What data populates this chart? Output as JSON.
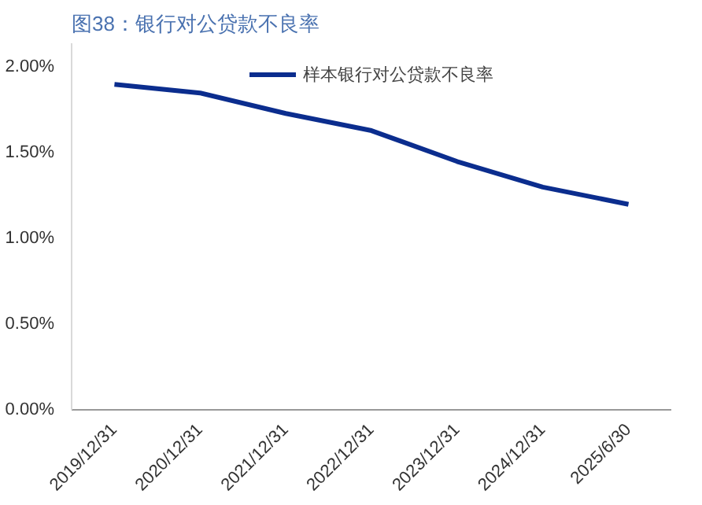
{
  "chart_data": {
    "type": "line",
    "title": "图38：银行对公贷款不良率",
    "categories": [
      "2019/12/31",
      "2020/12/31",
      "2021/12/31",
      "2022/12/31",
      "2023/12/31",
      "2024/12/31",
      "2025/6/30"
    ],
    "series": [
      {
        "name": "样本银行对公贷款不良率",
        "color": "#0b2d8e",
        "values": [
          1.9,
          1.85,
          1.73,
          1.63,
          1.45,
          1.3,
          1.2
        ]
      }
    ],
    "ylim": [
      0,
      2.14
    ],
    "yticks": [
      {
        "value": 0,
        "label": "0.00%"
      },
      {
        "value": 0.5,
        "label": "0.50%"
      },
      {
        "value": 1,
        "label": "1.00%"
      },
      {
        "value": 1.5,
        "label": "1.50%"
      },
      {
        "value": 2,
        "label": "2.00%"
      }
    ],
    "grid": false,
    "legend": "top",
    "marker": "none",
    "line_style": "solid"
  }
}
